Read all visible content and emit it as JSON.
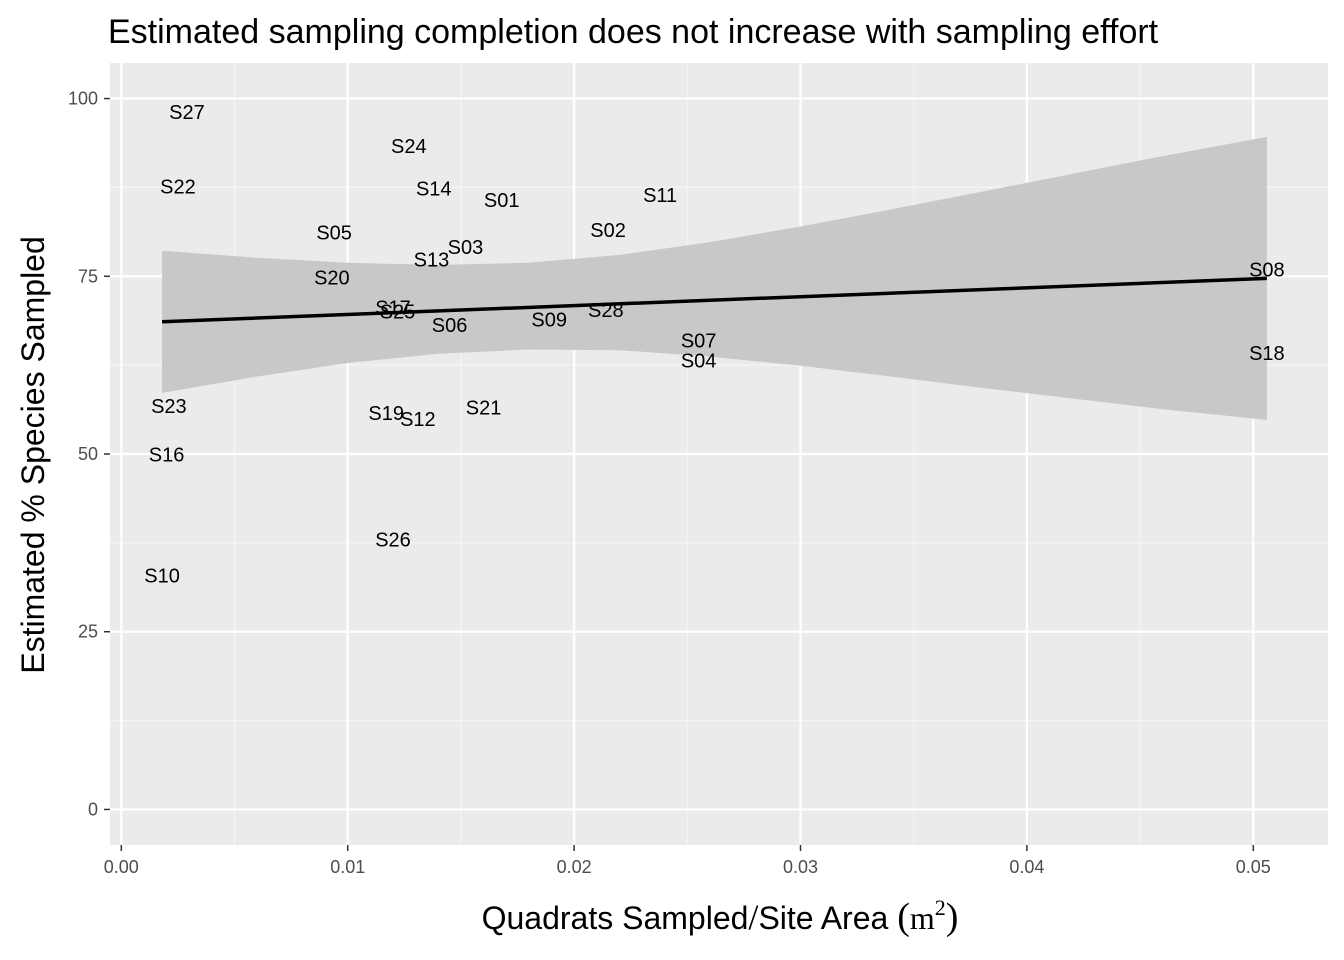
{
  "chart_data": {
    "type": "scatter",
    "title": "Estimated sampling completion does not increase with sampling effort",
    "xlabel": {
      "main": "Quadrats Sampled",
      "slash": "/",
      "rest": "Site Area ",
      "open_paren": "(",
      "unit": "m",
      "sup": "2",
      "close_paren": ")"
    },
    "ylabel": "Estimated % Species Sampled",
    "xlim": [
      -0.0005,
      0.0533
    ],
    "ylim": [
      -5,
      105
    ],
    "x_ticks": [
      0.0,
      0.01,
      0.02,
      0.03,
      0.04,
      0.05
    ],
    "x_tick_labels": [
      "0.00",
      "0.01",
      "0.02",
      "0.03",
      "0.04",
      "0.05"
    ],
    "y_ticks": [
      0,
      25,
      50,
      75,
      100
    ],
    "y_tick_labels": [
      "0",
      "25",
      "50",
      "75",
      "100"
    ],
    "grid": true,
    "points": [
      {
        "label": "S27",
        "x": 0.0029,
        "y": 98.0
      },
      {
        "label": "S22",
        "x": 0.0025,
        "y": 87.5
      },
      {
        "label": "S24",
        "x": 0.0127,
        "y": 93.2
      },
      {
        "label": "S14",
        "x": 0.0138,
        "y": 87.2
      },
      {
        "label": "S01",
        "x": 0.0168,
        "y": 85.6
      },
      {
        "label": "S11",
        "x": 0.0238,
        "y": 86.3
      },
      {
        "label": "S05",
        "x": 0.0094,
        "y": 81.0
      },
      {
        "label": "S02",
        "x": 0.0215,
        "y": 81.4
      },
      {
        "label": "S03",
        "x": 0.0152,
        "y": 79.0
      },
      {
        "label": "S13",
        "x": 0.0137,
        "y": 77.2
      },
      {
        "label": "S20",
        "x": 0.0093,
        "y": 74.7
      },
      {
        "label": "S08",
        "x": 0.0506,
        "y": 75.8
      },
      {
        "label": "S17",
        "x": 0.012,
        "y": 70.5
      },
      {
        "label": "S25",
        "x": 0.0122,
        "y": 69.9
      },
      {
        "label": "S28",
        "x": 0.0214,
        "y": 70.1
      },
      {
        "label": "S06",
        "x": 0.0145,
        "y": 68.0
      },
      {
        "label": "S09",
        "x": 0.0189,
        "y": 68.8
      },
      {
        "label": "S07",
        "x": 0.0255,
        "y": 65.8
      },
      {
        "label": "S04",
        "x": 0.0255,
        "y": 63.0
      },
      {
        "label": "S18",
        "x": 0.0506,
        "y": 64.1
      },
      {
        "label": "S23",
        "x": 0.0021,
        "y": 56.6
      },
      {
        "label": "S21",
        "x": 0.016,
        "y": 56.4
      },
      {
        "label": "S19",
        "x": 0.0117,
        "y": 55.6
      },
      {
        "label": "S12",
        "x": 0.0131,
        "y": 54.8
      },
      {
        "label": "S16",
        "x": 0.002,
        "y": 49.8
      },
      {
        "label": "S26",
        "x": 0.012,
        "y": 37.8
      },
      {
        "label": "S10",
        "x": 0.0018,
        "y": 32.8
      }
    ],
    "regression": {
      "x": [
        0.0018,
        0.0506
      ],
      "y": [
        68.6,
        74.7
      ]
    },
    "confidence_band": {
      "x": [
        0.0018,
        0.006,
        0.01,
        0.014,
        0.018,
        0.022,
        0.026,
        0.03,
        0.034,
        0.038,
        0.042,
        0.046,
        0.0506
      ],
      "upper": [
        78.6,
        77.6,
        76.9,
        76.6,
        76.9,
        78.0,
        79.8,
        82.0,
        84.4,
        86.9,
        89.4,
        91.9,
        94.6
      ],
      "lower": [
        58.6,
        60.9,
        62.8,
        64.1,
        64.7,
        64.6,
        63.7,
        62.4,
        60.9,
        59.3,
        57.8,
        56.3,
        54.8
      ]
    }
  },
  "colors": {
    "panel_background": "#ebebeb",
    "grid_major": "#ffffff",
    "grid_minor": "#f5f5f5",
    "band_fill": "#c8c8c8",
    "line": "#000000",
    "tick_text": "#4d4d4d",
    "tick_mark": "#333333"
  }
}
